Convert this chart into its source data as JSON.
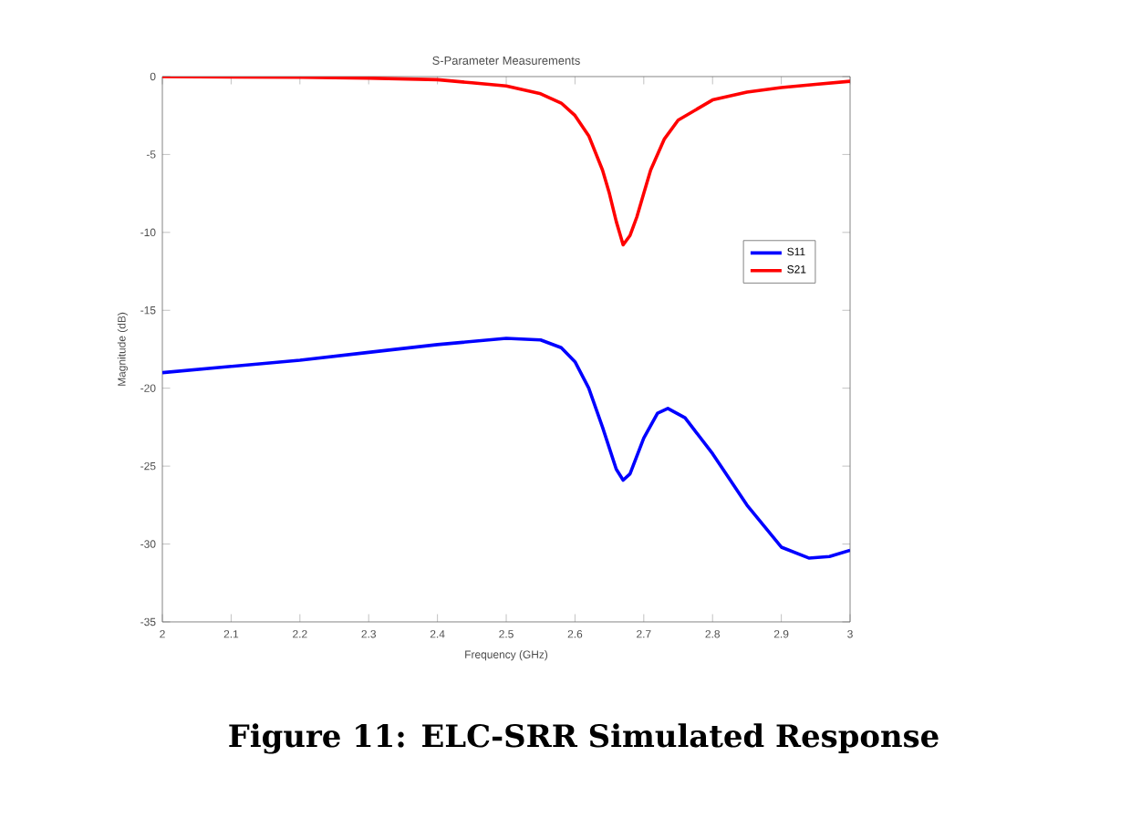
{
  "chart_data": {
    "type": "line",
    "title": "S-Parameter Measurements",
    "xlabel": "Frequency (GHz)",
    "ylabel": "Magnitude (dB)",
    "annotations": [
      "**Figure 11: ELC-SRR Simulated Response**"
    ],
    "xlim": [
      2,
      3
    ],
    "ylim": [
      -35,
      0
    ],
    "xticks": [
      {
        "value": 2,
        "label": "2"
      },
      2.1,
      2.2,
      2.3,
      2.4,
      2.5,
      2.6,
      2.7,
      2.8,
      2.9,
      {
        "value": 3,
        "label": "3"
      }
    ],
    "yticks": [
      -35,
      -30,
      -25,
      -20,
      -15,
      -10,
      -5,
      0
    ],
    "legend": "right",
    "grid": false,
    "marker": "none",
    "line_style": "solid",
    "series": [
      {
        "name": "S11",
        "color": "#0000ff",
        "x": [
          2,
          2.1,
          2.2,
          2.3,
          2.4,
          2.5,
          2.55,
          2.58,
          2.6,
          2.62,
          2.64,
          2.66,
          2.67,
          2.68,
          2.7,
          2.72,
          2.735,
          2.76,
          2.8,
          2.85,
          2.9,
          2.94,
          2.97,
          3
        ],
        "values": [
          -19.0,
          -18.6,
          -18.2,
          -17.7,
          -17.2,
          -16.8,
          -16.9,
          -17.4,
          -18.3,
          -20.0,
          -22.5,
          -25.2,
          -25.9,
          -25.5,
          -23.2,
          -21.6,
          -21.3,
          -21.9,
          -24.2,
          -27.5,
          -30.2,
          -30.9,
          -30.8,
          -30.4
        ]
      },
      {
        "name": "S21",
        "color": "#ff0000",
        "x": [
          2,
          2.2,
          2.3,
          2.4,
          2.45,
          2.5,
          2.55,
          2.58,
          2.6,
          2.62,
          2.64,
          2.65,
          2.66,
          2.67,
          2.68,
          2.69,
          2.7,
          2.71,
          2.73,
          2.75,
          2.8,
          2.85,
          2.9,
          2.95,
          3
        ],
        "values": [
          0,
          -0.05,
          -0.1,
          -0.2,
          -0.4,
          -0.6,
          -1.1,
          -1.7,
          -2.5,
          -3.8,
          -6.0,
          -7.5,
          -9.3,
          -10.8,
          -10.2,
          -9.0,
          -7.5,
          -6.0,
          -4.0,
          -2.8,
          -1.5,
          -1.0,
          -0.7,
          -0.5,
          -0.3
        ]
      }
    ]
  }
}
